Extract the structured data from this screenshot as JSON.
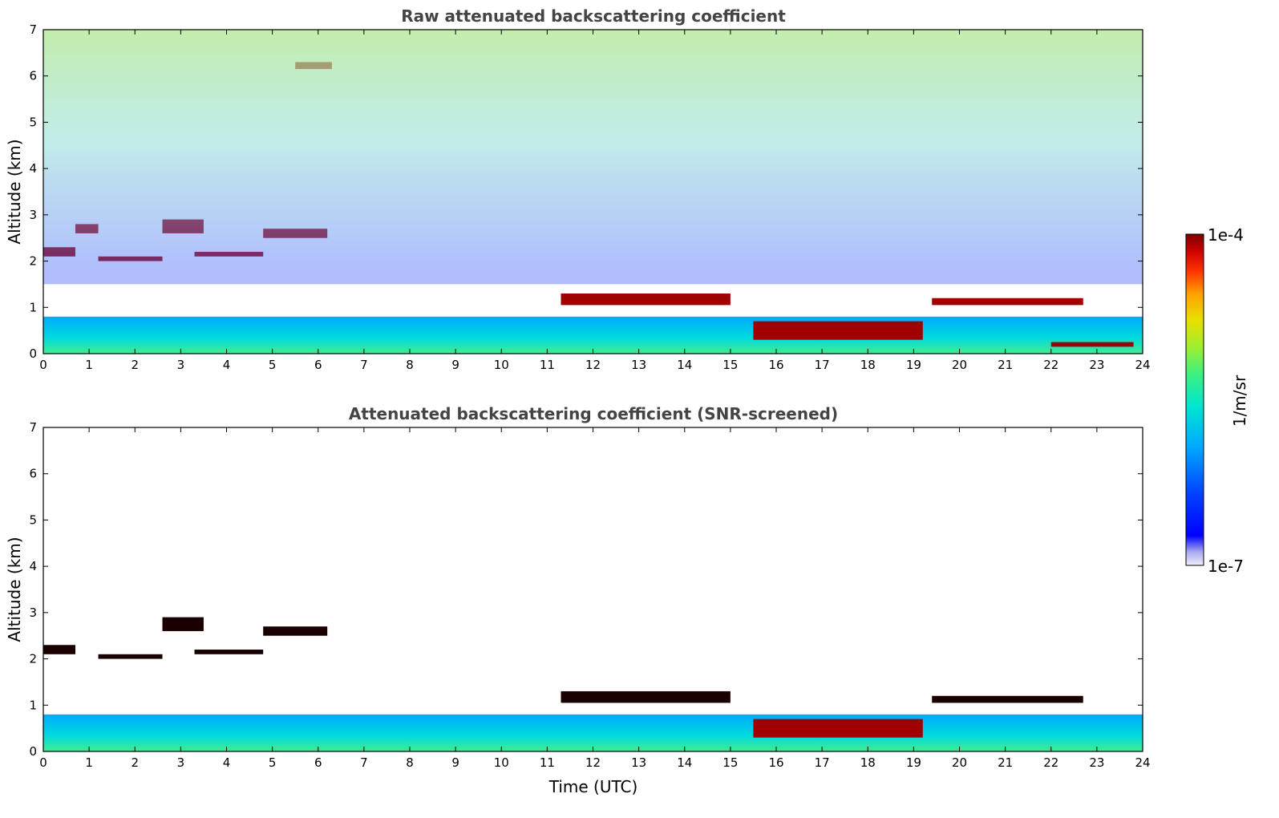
{
  "chart_data": [
    {
      "type": "heatmap",
      "title": "Raw attenuated backscattering coefficient",
      "xlabel": "",
      "ylabel": "Altitude (km)",
      "xlim": [
        0,
        24
      ],
      "ylim": [
        0,
        7
      ],
      "xticks": [
        "0",
        "1",
        "2",
        "3",
        "4",
        "5",
        "6",
        "7",
        "8",
        "9",
        "10",
        "11",
        "12",
        "13",
        "14",
        "15",
        "16",
        "17",
        "18",
        "19",
        "20",
        "21",
        "22",
        "23",
        "24"
      ],
      "yticks": [
        "0",
        "1",
        "2",
        "3",
        "4",
        "5",
        "6",
        "7"
      ],
      "features": [
        {
          "kind": "cloud",
          "t": [
            0.0,
            0.7
          ],
          "z": [
            2.1,
            2.3
          ],
          "value": "1e-4"
        },
        {
          "kind": "cloud",
          "t": [
            0.7,
            1.2
          ],
          "z": [
            2.6,
            2.8
          ],
          "value": "1e-4"
        },
        {
          "kind": "cloud",
          "t": [
            1.2,
            2.6
          ],
          "z": [
            2.0,
            2.1
          ],
          "value": "1e-4"
        },
        {
          "kind": "cloud",
          "t": [
            2.6,
            3.5
          ],
          "z": [
            2.6,
            2.9
          ],
          "value": "1e-4"
        },
        {
          "kind": "cloud",
          "t": [
            3.3,
            4.8
          ],
          "z": [
            2.1,
            2.2
          ],
          "value": "1e-4"
        },
        {
          "kind": "cloud",
          "t": [
            4.8,
            6.2
          ],
          "z": [
            2.5,
            2.7
          ],
          "value": "1e-4"
        },
        {
          "kind": "cloud",
          "t": [
            5.5,
            6.3
          ],
          "z": [
            6.15,
            6.3
          ],
          "value": "1e-4"
        },
        {
          "kind": "cloud",
          "t": [
            11.3,
            15.0
          ],
          "z": [
            1.05,
            1.3
          ],
          "value": "1e-4"
        },
        {
          "kind": "cloud",
          "t": [
            19.4,
            22.7
          ],
          "z": [
            1.05,
            1.2
          ],
          "value": "1e-4"
        },
        {
          "kind": "boundary-layer",
          "t": [
            0,
            24
          ],
          "z": [
            0,
            0.8
          ],
          "value": "3e-6"
        },
        {
          "kind": "low-cloud",
          "t": [
            15.5,
            19.2
          ],
          "z": [
            0.3,
            0.7
          ],
          "value": "1e-4"
        },
        {
          "kind": "low-cloud",
          "t": [
            22.0,
            23.8
          ],
          "z": [
            0.15,
            0.25
          ],
          "value": "1e-4"
        },
        {
          "kind": "noise",
          "t": [
            0,
            24
          ],
          "z": [
            1.5,
            7
          ],
          "value": "1e-6 to 1e-5"
        }
      ]
    },
    {
      "type": "heatmap",
      "title": "Attenuated backscattering coefficient (SNR-screened)",
      "xlabel": "Time (UTC)",
      "ylabel": "Altitude (km)",
      "xlim": [
        0,
        24
      ],
      "ylim": [
        0,
        7
      ],
      "xticks": [
        "0",
        "1",
        "2",
        "3",
        "4",
        "5",
        "6",
        "7",
        "8",
        "9",
        "10",
        "11",
        "12",
        "13",
        "14",
        "15",
        "16",
        "17",
        "18",
        "19",
        "20",
        "21",
        "22",
        "23",
        "24"
      ],
      "yticks": [
        "0",
        "1",
        "2",
        "3",
        "4",
        "5",
        "6",
        "7"
      ],
      "features": [
        {
          "kind": "cloud",
          "t": [
            0.0,
            0.7
          ],
          "z": [
            2.1,
            2.3
          ],
          "value": "1e-4"
        },
        {
          "kind": "cloud",
          "t": [
            1.2,
            2.6
          ],
          "z": [
            2.0,
            2.1
          ],
          "value": "1e-4"
        },
        {
          "kind": "cloud",
          "t": [
            2.6,
            3.5
          ],
          "z": [
            2.6,
            2.9
          ],
          "value": "1e-4"
        },
        {
          "kind": "cloud",
          "t": [
            3.3,
            4.8
          ],
          "z": [
            2.1,
            2.2
          ],
          "value": "1e-4"
        },
        {
          "kind": "cloud",
          "t": [
            4.8,
            6.2
          ],
          "z": [
            2.5,
            2.7
          ],
          "value": "1e-4"
        },
        {
          "kind": "cloud",
          "t": [
            11.3,
            15.0
          ],
          "z": [
            1.05,
            1.3
          ],
          "value": "1e-4"
        },
        {
          "kind": "cloud",
          "t": [
            19.4,
            22.7
          ],
          "z": [
            1.05,
            1.2
          ],
          "value": "1e-4"
        },
        {
          "kind": "boundary-layer",
          "t": [
            0,
            24
          ],
          "z": [
            0,
            0.8
          ],
          "value": "3e-6"
        },
        {
          "kind": "low-cloud",
          "t": [
            15.5,
            19.2
          ],
          "z": [
            0.3,
            0.7
          ],
          "value": "1e-4"
        }
      ]
    }
  ],
  "colorbar": {
    "max_label": "1e-4",
    "min_label": "1e-7",
    "unit_label": "1/m/sr",
    "colors": [
      "#e8e8f8",
      "#c8c8f0",
      "#a0a0e8",
      "#0000ff",
      "#0050ff",
      "#00a0ff",
      "#00e0e0",
      "#30f0a0",
      "#90f040",
      "#e8e000",
      "#ffa000",
      "#ff4000",
      "#d00000",
      "#800000"
    ]
  }
}
